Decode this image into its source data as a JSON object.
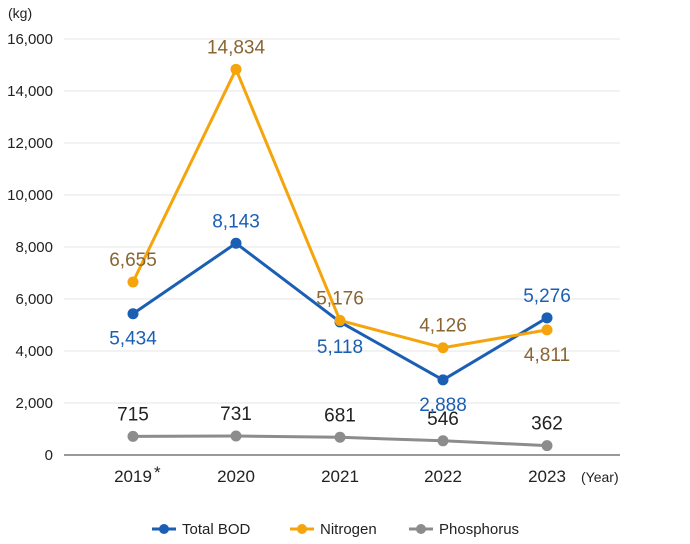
{
  "chart_data": {
    "type": "line",
    "y_unit_label": "(kg)",
    "x_unit_label": "(Year)",
    "categories": [
      "2019",
      "2020",
      "2021",
      "2022",
      "2023"
    ],
    "category_marks": [
      "*",
      "",
      "",
      "",
      ""
    ],
    "ylim": [
      0,
      16000
    ],
    "y_ticks": [
      0,
      2000,
      4000,
      6000,
      8000,
      10000,
      12000,
      14000,
      16000
    ],
    "y_tick_labels": [
      "0",
      "2,000",
      "4,000",
      "6,000",
      "8,000",
      "10,000",
      "12,000",
      "14,000",
      "16,000"
    ],
    "grid": true,
    "legend_position": "bottom",
    "series": [
      {
        "name": "Total BOD",
        "color": "#1a5fb4",
        "label_color": "#1a5fb4",
        "values": [
          5434,
          8143,
          5118,
          2888,
          5276
        ],
        "labels": [
          "5,434",
          "8,143",
          "5,118",
          "2,888",
          "5,276"
        ],
        "label_side": [
          "below",
          "above",
          "below",
          "below",
          "above"
        ]
      },
      {
        "name": "Nitrogen",
        "color": "#f5a40c",
        "label_color": "#8a6432",
        "values": [
          6655,
          14834,
          5176,
          4126,
          4811
        ],
        "labels": [
          "6,655",
          "14,834",
          "5,176",
          "4,126",
          "4,811"
        ],
        "label_side": [
          "above",
          "above",
          "above",
          "above",
          "below"
        ]
      },
      {
        "name": "Phosphorus",
        "color": "#8c8c8c",
        "label_color": "#222222",
        "values": [
          715,
          731,
          681,
          546,
          362
        ],
        "labels": [
          "715",
          "731",
          "681",
          "546",
          "362"
        ],
        "label_side": [
          "above",
          "above",
          "above",
          "above",
          "above"
        ]
      }
    ]
  }
}
